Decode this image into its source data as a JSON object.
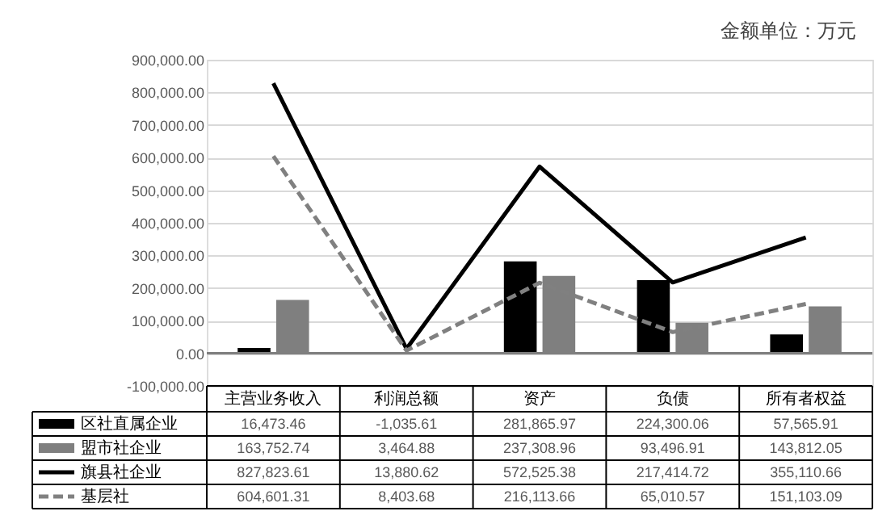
{
  "chart_data": {
    "type": "bar",
    "annotations": [
      "金额单位：万元"
    ],
    "categories": [
      "主营业务收入",
      "利润总额",
      "资产",
      "负债",
      "所有者权益"
    ],
    "series": [
      {
        "name": "区社直属企业",
        "color": "#000000",
        "values": [
          16473.46,
          -1035.61,
          281865.97,
          224300.06,
          57565.91
        ],
        "value_labels": [
          "16,473.46",
          "-1,035.61",
          "281,865.97",
          "224,300.06",
          "57,565.91"
        ]
      },
      {
        "name": "盟市社企业",
        "color": "#7f7f7f",
        "values": [
          163752.74,
          3464.88,
          237308.96,
          93496.91,
          143812.05
        ],
        "value_labels": [
          "163,752.74",
          "3,464.88",
          "237,308.96",
          "93,496.91",
          "143,812.05"
        ]
      },
      {
        "name": "旗县社企业",
        "type": "line",
        "color": "#000000",
        "line_style": "solid",
        "values": [
          827823.61,
          13880.62,
          572525.38,
          217414.72,
          355110.66
        ],
        "value_labels": [
          "827,823.61",
          "13,880.62",
          "572,525.38",
          "217,414.72",
          "355,110.66"
        ]
      },
      {
        "name": "基层社",
        "type": "line",
        "color": "#808080",
        "line_style": "dashed",
        "values": [
          604601.31,
          8403.68,
          216113.66,
          65010.57,
          151103.09
        ],
        "value_labels": [
          "604,601.31",
          "8,403.68",
          "216,113.66",
          "65,010.57",
          "151,103.09"
        ]
      }
    ],
    "ylim": [
      -100000,
      900000
    ],
    "yticks": [
      {
        "value": -100000,
        "label": "-100,000.00"
      },
      {
        "value": 0,
        "label": "0.00"
      },
      {
        "value": 100000,
        "label": "100,000.00"
      },
      {
        "value": 200000,
        "label": "200,000.00"
      },
      {
        "value": 300000,
        "label": "300,000.00"
      },
      {
        "value": 400000,
        "label": "400,000.00"
      },
      {
        "value": 500000,
        "label": "500,000.00"
      },
      {
        "value": 600000,
        "label": "600,000.00"
      },
      {
        "value": 700000,
        "label": "700,000.00"
      },
      {
        "value": 800000,
        "label": "800,000.00"
      },
      {
        "value": 900000,
        "label": "900,000.00"
      }
    ],
    "grid": "y",
    "legend": "bottom left"
  }
}
